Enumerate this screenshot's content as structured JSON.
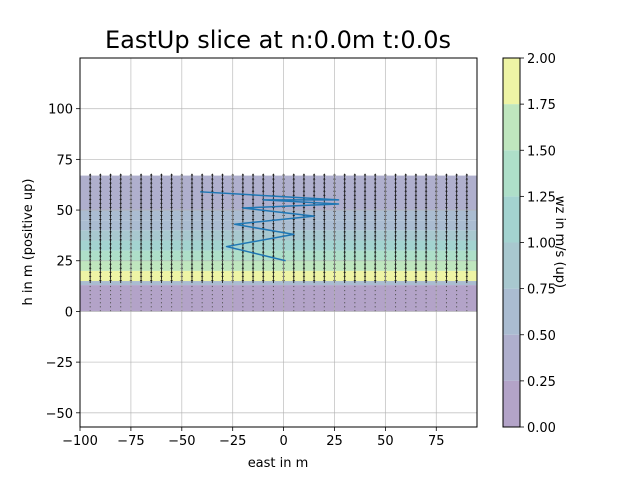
{
  "chart_data": {
    "type": "contour+quiver+line",
    "title": "EastUp slice at n:0.0m t:0.0s",
    "xlabel": "east in m",
    "ylabel": "h in m (positive up)",
    "xlim": [
      -100,
      95
    ],
    "ylim": [
      -57,
      125
    ],
    "xticks": [
      -100,
      -75,
      -50,
      -25,
      0,
      25,
      50,
      75
    ],
    "yticks": [
      -50,
      -25,
      0,
      25,
      50,
      75,
      100
    ],
    "xtick_labels": [
      "−100",
      "−75",
      "−50",
      "−25",
      "0",
      "25",
      "50",
      "75"
    ],
    "ytick_labels": [
      "−50",
      "−25",
      "0",
      "25",
      "50",
      "75",
      "100"
    ],
    "grid": true,
    "colorbar": {
      "label": "wz in m/s (up)",
      "ticks": [
        0.0,
        0.25,
        0.5,
        0.75,
        1.0,
        1.25,
        1.5,
        1.75,
        2.0
      ],
      "tick_labels": [
        "0.00",
        "0.25",
        "0.50",
        "0.75",
        "1.00",
        "1.25",
        "1.50",
        "1.75",
        "2.00"
      ],
      "levels": [
        {
          "range": [
            0.0,
            0.25
          ],
          "color": "#b3a3c8"
        },
        {
          "range": [
            0.25,
            0.5
          ],
          "color": "#afafcd"
        },
        {
          "range": [
            0.5,
            0.75
          ],
          "color": "#aabcd1"
        },
        {
          "range": [
            0.75,
            1.0
          ],
          "color": "#a8c8cf"
        },
        {
          "range": [
            1.0,
            1.25
          ],
          "color": "#a3d3d0"
        },
        {
          "range": [
            1.25,
            1.5
          ],
          "color": "#aedfc9"
        },
        {
          "range": [
            1.5,
            1.75
          ],
          "color": "#bfe6be"
        },
        {
          "range": [
            1.75,
            2.0
          ],
          "color": "#eef4a5"
        }
      ]
    },
    "contour_bands": [
      {
        "y_range": [
          0,
          13
        ],
        "level": 0
      },
      {
        "y_range": [
          13,
          15
        ],
        "level": 2
      },
      {
        "y_range": [
          15,
          20
        ],
        "level": 7
      },
      {
        "y_range": [
          20,
          25
        ],
        "level": 6
      },
      {
        "y_range": [
          25,
          30
        ],
        "level": 5
      },
      {
        "y_range": [
          30,
          35
        ],
        "level": 4
      },
      {
        "y_range": [
          35,
          40
        ],
        "level": 3
      },
      {
        "y_range": [
          40,
          45
        ],
        "level": 2
      },
      {
        "y_range": [
          45,
          50
        ],
        "level": 2
      },
      {
        "y_range": [
          50,
          67
        ],
        "level": 1
      }
    ],
    "quiver": {
      "x_start": -95,
      "x_step": 5,
      "x_count": 38,
      "y_start": 0,
      "y_step": 2,
      "y_count": 34,
      "strong_above": 14
    },
    "series": [
      {
        "color": "#1f77b4",
        "x": [
          1,
          -28,
          5,
          -24,
          15,
          -20,
          27,
          -10,
          27,
          -41
        ],
        "y": [
          25,
          32,
          38,
          43,
          47,
          51,
          53,
          55,
          55,
          59
        ]
      }
    ]
  }
}
